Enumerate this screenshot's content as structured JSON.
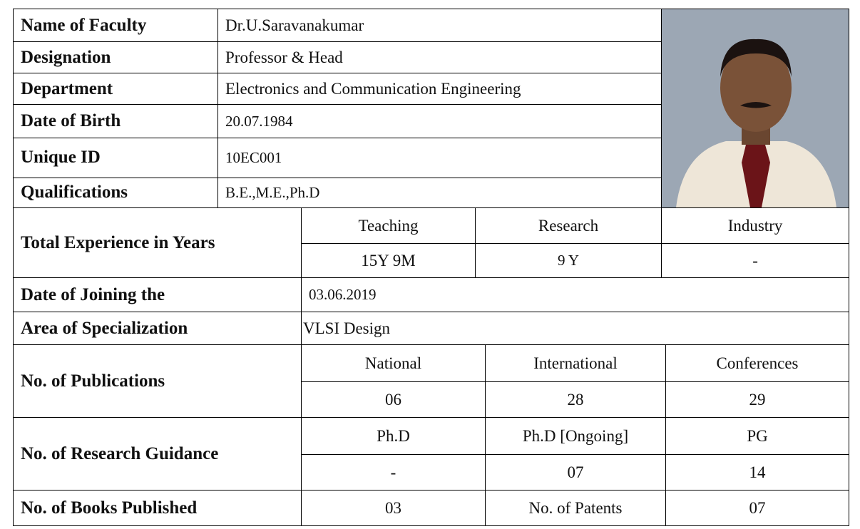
{
  "table": {
    "rows": [
      [
        "Name of Faculty",
        "Dr.U.Saravanakumar"
      ],
      [
        "Designation",
        "Professor & Head"
      ],
      [
        "Department",
        "Electronics and Communication Engineering"
      ],
      [
        "Date of Birth",
        "20.07.1984"
      ],
      [
        "Unique ID",
        "10EC001"
      ],
      [
        "Qualifications",
        "B.E.,M.E.,Ph.D"
      ],
      [
        "Total Experience in Years",
        "Teaching",
        "Research",
        "Industry"
      ],
      [
        "15Y 9M",
        "9 Y",
        "-"
      ],
      [
        "Date of Joining the",
        "03.06.2019"
      ],
      [
        "Area of Specialization",
        "VLSI Design"
      ],
      [
        "No. of  Publications",
        "National",
        "International",
        "Conferences"
      ],
      [
        "06",
        "28",
        "29"
      ],
      [
        "No. of Research Guidance",
        "Ph.D",
        "Ph.D [Ongoing]",
        "PG"
      ],
      [
        "-",
        "07",
        "14"
      ],
      [
        "No. of Books Published",
        "03",
        "No. of Patents",
        "07"
      ]
    ]
  }
}
